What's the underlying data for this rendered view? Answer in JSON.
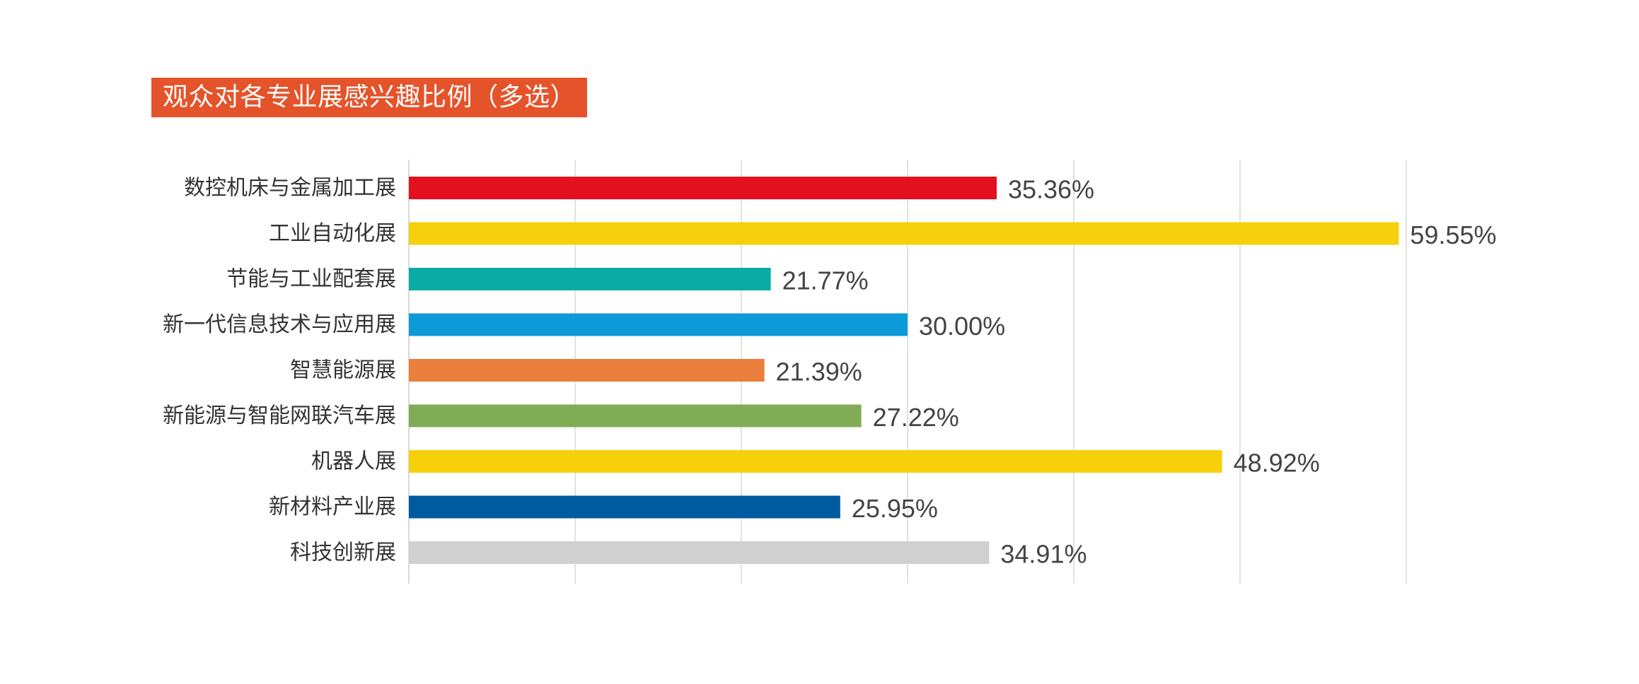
{
  "chart_data": {
    "type": "bar",
    "orientation": "horizontal",
    "title": "观众对各专业展感兴趣比例（多选）",
    "categories": [
      "数控机床与金属加工展",
      "工业自动化展",
      "节能与工业配套展",
      "新一代信息技术与应用展",
      "智慧能源展",
      "新能源与智能网联汽车展",
      "机器人展",
      "新材料产业展",
      "科技创新展"
    ],
    "values": [
      35.36,
      59.55,
      21.77,
      30.0,
      21.39,
      27.22,
      48.92,
      25.95,
      34.91
    ],
    "value_labels": [
      "35.36%",
      "59.55%",
      "21.77%",
      "30.00%",
      "21.39%",
      "27.22%",
      "48.92%",
      "25.95%",
      "34.91%"
    ],
    "colors": [
      "#e3101d",
      "#f6d00a",
      "#0aaaa5",
      "#0d9ad9",
      "#ec7e3c",
      "#7fac55",
      "#f6d00a",
      "#005a9f",
      "#d0d0d0"
    ],
    "xlim": [
      0,
      60
    ],
    "grid_step": 10,
    "grid": true,
    "xlabel": "",
    "ylabel": ""
  },
  "colors": {
    "title_bg": "#e4532a",
    "title_text": "#ffffff",
    "grid": "#d9d9d9"
  }
}
